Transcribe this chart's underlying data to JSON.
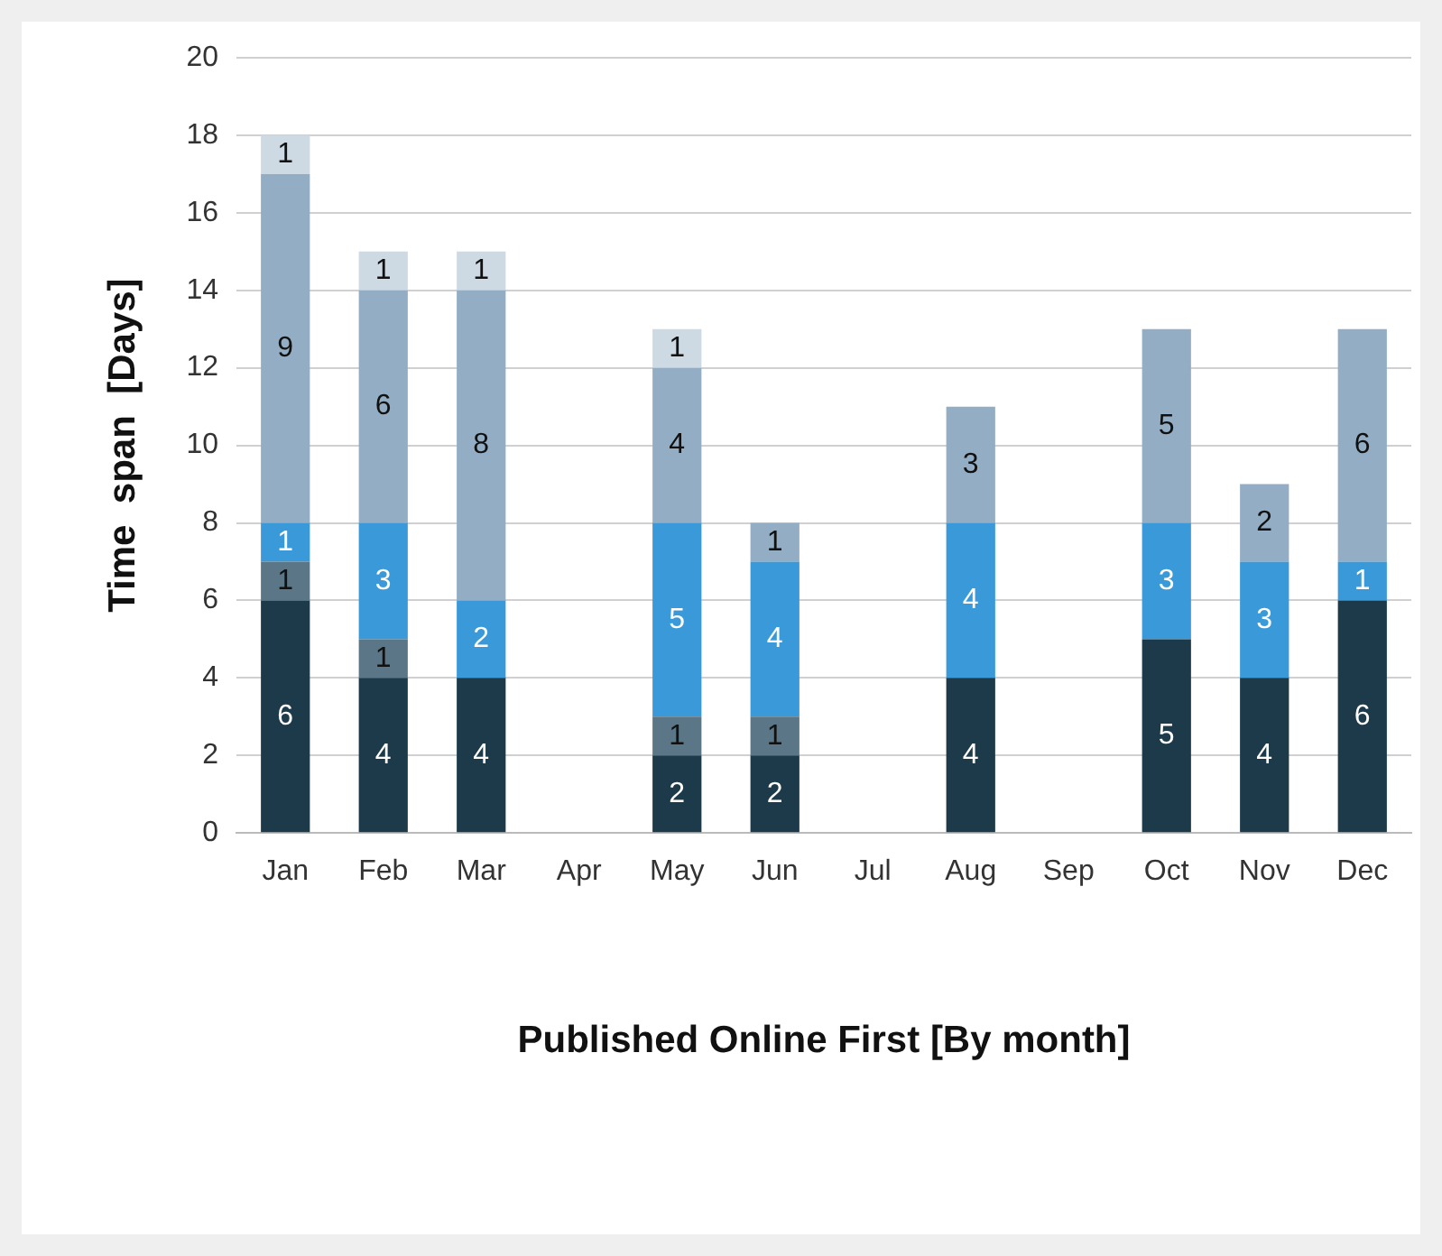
{
  "chart_data": {
    "type": "bar",
    "stacked": true,
    "xlabel": "Published Online First [By month]",
    "ylabel": "Time  span  [Days]",
    "categories": [
      "Jan",
      "Feb",
      "Mar",
      "Apr",
      "May",
      "Jun",
      "Jul",
      "Aug",
      "Sep",
      "Oct",
      "Nov",
      "Dec"
    ],
    "series": [
      {
        "color": "#1c3a4a",
        "values": [
          6,
          4,
          4,
          null,
          2,
          2,
          null,
          4,
          null,
          5,
          4,
          6
        ]
      },
      {
        "color": "#5b7686",
        "values": [
          1,
          1,
          null,
          null,
          1,
          1,
          null,
          null,
          null,
          null,
          null,
          null
        ]
      },
      {
        "color": "#3a9ad9",
        "values": [
          1,
          3,
          2,
          null,
          5,
          4,
          null,
          4,
          null,
          3,
          3,
          1
        ]
      },
      {
        "color": "#93aec4",
        "values": [
          9,
          6,
          8,
          null,
          4,
          1,
          null,
          3,
          null,
          5,
          2,
          6
        ]
      },
      {
        "color": "#cddae4",
        "values": [
          1,
          1,
          1,
          null,
          1,
          null,
          null,
          null,
          null,
          null,
          null,
          null
        ]
      }
    ],
    "ylim": [
      0,
      20
    ],
    "yticks": [
      0,
      2,
      4,
      6,
      8,
      10,
      12,
      14,
      16,
      18,
      20
    ],
    "grid": "y",
    "data_labels": true,
    "legend": false
  }
}
